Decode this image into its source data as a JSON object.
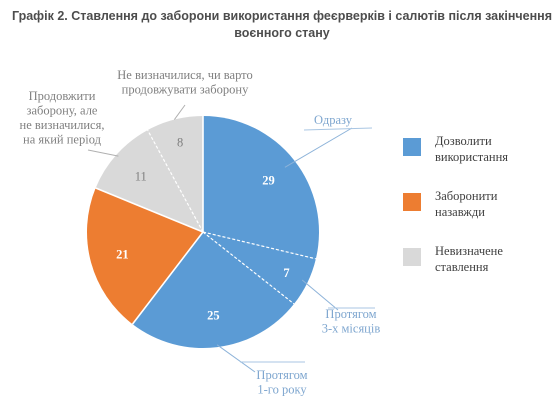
{
  "chart_data": {
    "type": "pie",
    "title_label": "Графік 2.",
    "title": "Ставлення до заборони використання феєрверків і салютів після закінчення воєнного стану",
    "slices": [
      {
        "label": "Одразу",
        "value": 29,
        "value_label": "29",
        "color": "#5b9bd5",
        "group": "allow"
      },
      {
        "label": "Протягом 3-х місяців",
        "value": 7,
        "value_label": "7",
        "color": "#5b9bd5",
        "group": "allow"
      },
      {
        "label": "Протягом 1-го року",
        "value": 25,
        "value_label": "25",
        "color": "#5b9bd5",
        "group": "allow"
      },
      {
        "label": "",
        "value": 21,
        "value_label": "21",
        "color": "#ed7d31",
        "group": "forbid"
      },
      {
        "label": "Продовжити заборону, але не визначилися, на який період",
        "value": 11,
        "value_label": "11",
        "color": "#d9d9d9",
        "group": "undecided"
      },
      {
        "label": "Не визначилися, чи варто продовжувати заборону",
        "value": 8,
        "value_label": "8",
        "color": "#d9d9d9",
        "group": "undecided"
      }
    ],
    "legend": [
      {
        "label": "Дозволити використання",
        "color": "#5b9bd5"
      },
      {
        "label": "Заборонити назавжди",
        "color": "#ed7d31"
      },
      {
        "label": "Невизначене ставлення",
        "color": "#d9d9d9"
      }
    ],
    "legend_position": "right"
  }
}
